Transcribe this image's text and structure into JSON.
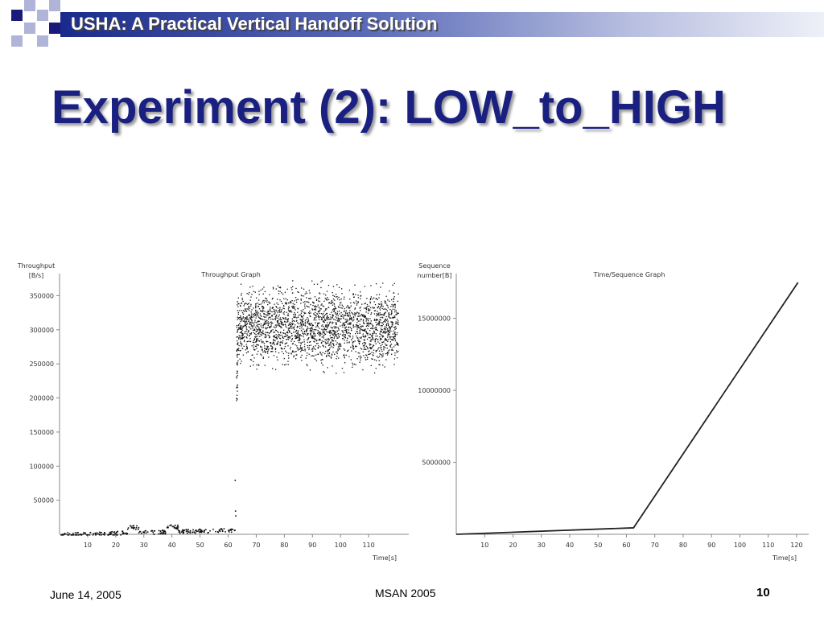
{
  "header": {
    "title": "USHA: A Practical Vertical Handoff Solution"
  },
  "slide": {
    "title": "Experiment (2): LOW_to_HIGH"
  },
  "footer": {
    "date": "June 14, 2005",
    "conference": "MSAN 2005",
    "page": "10"
  },
  "colors": {
    "header_dark": "#1a2a8c",
    "title": "#1a2080",
    "square_dark": "#1a1a7a",
    "square_light": "#b0b4d8"
  },
  "chart_data": [
    {
      "type": "scatter",
      "title": "Throughput Graph",
      "ylabel_line1": "Throughput",
      "ylabel_line2": "[B/s]",
      "xlabel": "Time[s]",
      "xlim": [
        0,
        122
      ],
      "ylim": [
        0,
        380000
      ],
      "xticks": [
        10,
        20,
        30,
        40,
        50,
        60,
        70,
        80,
        90,
        100,
        110
      ],
      "yticks": [
        50000,
        100000,
        150000,
        200000,
        250000,
        300000,
        350000
      ],
      "segments": [
        {
          "x_start": 0,
          "x_end": 62.5,
          "level": 7000,
          "spread": 6000
        },
        {
          "x_start": 63,
          "x_end": 120.5,
          "level": 305000,
          "spread": 60000
        }
      ],
      "transition_points": [
        [
          62.3,
          80000
        ],
        [
          62.4,
          35000
        ],
        [
          62.5,
          28000
        ],
        [
          62.8,
          200000
        ],
        [
          63.0,
          240000
        ]
      ]
    },
    {
      "type": "line",
      "title": "Time/Sequence Graph",
      "ylabel_line1": "Sequence",
      "ylabel_line2": "number[B]",
      "xlabel": "Time[s]",
      "xlim": [
        0,
        122
      ],
      "ylim": [
        0,
        18000000
      ],
      "xticks": [
        10,
        20,
        30,
        40,
        50,
        60,
        70,
        80,
        90,
        100,
        110,
        120
      ],
      "yticks": [
        5000000,
        10000000,
        15000000
      ],
      "x": [
        0,
        62.5,
        120.5
      ],
      "y": [
        0,
        450000,
        17500000
      ]
    }
  ]
}
